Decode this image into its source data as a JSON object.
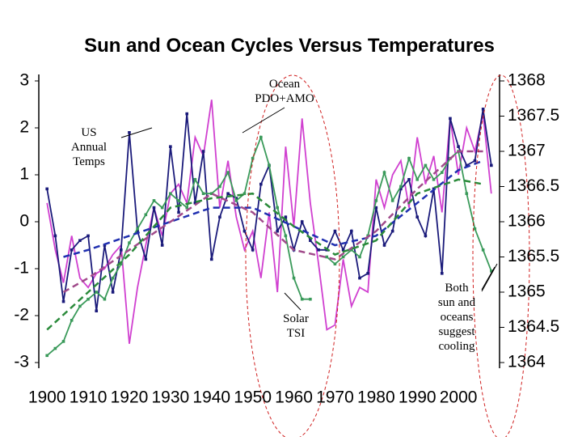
{
  "chart_data": {
    "type": "line",
    "title": "Sun and Ocean Cycles Versus Temperatures",
    "xlim": [
      1898,
      2010
    ],
    "xticks": [
      1900,
      1910,
      1920,
      1930,
      1940,
      1950,
      1960,
      1970,
      1980,
      1990,
      2000
    ],
    "ylim": [
      -3,
      3
    ],
    "yticks": [
      3,
      2,
      1,
      0,
      -1,
      -2,
      -3
    ],
    "y2lim": [
      1364,
      1368
    ],
    "y2ticks": [
      1368,
      1367.5,
      1367,
      1366.5,
      1366,
      1365.5,
      1365,
      1364.5,
      1364
    ],
    "grid": false,
    "series": [
      {
        "color": "#d040d0",
        "dash": false,
        "markers": false,
        "x": [
          1900,
          1902,
          1904,
          1906,
          1908,
          1910,
          1912,
          1914,
          1916,
          1918,
          1920,
          1922,
          1924,
          1926,
          1928,
          1930,
          1932,
          1934,
          1936,
          1938,
          1940,
          1942,
          1944,
          1946,
          1948,
          1950,
          1952,
          1954,
          1956,
          1958,
          1960,
          1962,
          1964,
          1966,
          1968,
          1970,
          1972,
          1974,
          1976,
          1978,
          1980,
          1982,
          1984,
          1986,
          1988,
          1990,
          1992,
          1994,
          1996,
          1998,
          2000,
          2002,
          2004,
          2006,
          2008
        ],
        "values": [
          0.4,
          -0.6,
          -1.3,
          -0.3,
          -1.2,
          -1.4,
          -1.1,
          -1.0,
          -0.7,
          -0.5,
          -2.6,
          -1.4,
          -0.5,
          0.3,
          -0.3,
          0.6,
          0.8,
          0.4,
          1.8,
          1.4,
          2.6,
          0.3,
          1.3,
          0.1,
          -0.6,
          -0.2,
          -1.2,
          0.2,
          -1.5,
          1.6,
          -0.1,
          2.2,
          0.4,
          -0.9,
          -2.3,
          -2.2,
          -0.8,
          -1.8,
          -1.4,
          -1.5,
          0.9,
          0.3,
          1.0,
          1.3,
          0.3,
          1.8,
          0.8,
          1.4,
          0.2,
          2.2,
          1.0,
          2.0,
          1.5,
          2.3,
          0.6
        ]
      },
      {
        "color": "#1a1a7a",
        "dash": false,
        "markers": true,
        "x": [
          1900,
          1902,
          1904,
          1906,
          1908,
          1910,
          1912,
          1914,
          1916,
          1918,
          1920,
          1922,
          1924,
          1926,
          1928,
          1930,
          1932,
          1934,
          1936,
          1938,
          1940,
          1942,
          1944,
          1946,
          1948,
          1950,
          1952,
          1954,
          1956,
          1958,
          1960,
          1962,
          1964,
          1966,
          1968,
          1970,
          1972,
          1974,
          1976,
          1978,
          1980,
          1982,
          1984,
          1986,
          1988,
          1990,
          1992,
          1994,
          1996,
          1998,
          2000,
          2002,
          2004,
          2006,
          2008
        ],
        "values": [
          0.7,
          -0.3,
          -1.7,
          -0.6,
          -0.4,
          -0.3,
          -1.9,
          -0.5,
          -1.5,
          -0.6,
          1.9,
          -0.2,
          -0.8,
          0.3,
          -0.5,
          1.6,
          0.2,
          2.3,
          0.4,
          1.5,
          -0.8,
          0.1,
          0.6,
          0.5,
          -0.2,
          -0.6,
          0.8,
          1.2,
          -0.2,
          0.1,
          -0.6,
          0.0,
          -0.4,
          -0.6,
          -0.6,
          -0.2,
          -0.6,
          -0.2,
          -1.2,
          -1.1,
          0.3,
          -0.5,
          -0.2,
          0.7,
          0.9,
          0.1,
          -0.3,
          0.7,
          -1.1,
          2.2,
          1.6,
          1.2,
          1.3,
          2.4,
          1.2
        ]
      },
      {
        "color": "#3a9a5a",
        "dash": false,
        "markers": true,
        "axis": "y2",
        "x": [
          1900,
          1902,
          1904,
          1906,
          1908,
          1910,
          1912,
          1914,
          1916,
          1918,
          1920,
          1922,
          1924,
          1926,
          1928,
          1930,
          1932,
          1934,
          1936,
          1938,
          1940,
          1942,
          1944,
          1946,
          1948,
          1950,
          1952,
          1954,
          1956,
          1958,
          1960,
          1962,
          1964,
          1966,
          1968,
          1970,
          1972,
          1974,
          1976,
          1978,
          1980,
          1982,
          1984,
          1986,
          1988,
          1990,
          1992,
          1994,
          1996,
          1998,
          2000,
          2002,
          2004,
          2006,
          2008
        ],
        "values": [
          1364.1,
          1364.2,
          1364.3,
          1364.6,
          1364.8,
          1364.9,
          1365.0,
          1364.9,
          1365.2,
          1365.4,
          1365.7,
          1365.9,
          1366.1,
          1366.3,
          1366.2,
          1366.4,
          1366.3,
          1366.2,
          1366.6,
          1366.4,
          1366.4,
          1366.5,
          1366.7,
          1366.3,
          1366.4,
          1366.9,
          1367.2,
          1366.8,
          1366.2,
          1365.8,
          1365.2,
          1364.9,
          1364.9,
          null,
          1365.5,
          1365.4,
          1365.5,
          1365.6,
          1365.5,
          1365.8,
          1366.3,
          1366.7,
          1366.3,
          1366.5,
          1366.9,
          1366.6,
          1366.8,
          1366.6,
          1366.7,
          1366.9,
          1367.0,
          1366.4,
          1365.9,
          1365.6,
          1365.3
        ]
      },
      {
        "color": "#2030b0",
        "dash": true,
        "markers": false,
        "x": [
          1904,
          1910,
          1920,
          1930,
          1940,
          1950,
          1960,
          1970,
          1980,
          1990,
          2000,
          2006
        ],
        "values": [
          -0.75,
          -0.6,
          -0.3,
          0.0,
          0.3,
          0.3,
          -0.1,
          -0.5,
          -0.3,
          0.4,
          1.1,
          1.3
        ]
      },
      {
        "color": "#a04a8a",
        "dash": true,
        "markers": false,
        "x": [
          1904,
          1910,
          1920,
          1930,
          1940,
          1950,
          1960,
          1970,
          1980,
          1990,
          2000,
          2006
        ],
        "values": [
          -1.5,
          -1.2,
          -0.6,
          0.0,
          0.6,
          0.2,
          -0.6,
          -0.8,
          -0.2,
          0.7,
          1.5,
          1.5
        ]
      },
      {
        "color": "#2a8a3a",
        "dash": true,
        "markers": false,
        "x": [
          1900,
          1910,
          1920,
          1930,
          1940,
          1950,
          1960,
          1970,
          1980,
          1990,
          2000,
          2006
        ],
        "values": [
          -2.3,
          -1.5,
          -0.7,
          0.3,
          0.5,
          0.6,
          -0.1,
          -0.7,
          -0.4,
          0.6,
          0.9,
          0.8
        ]
      }
    ],
    "annotations": [
      {
        "lines": [
          "Ocean",
          "PDO+AMO"
        ]
      },
      {
        "lines": [
          "US",
          "Annual",
          "Temps"
        ]
      },
      {
        "lines": [
          "Solar",
          "TSI"
        ]
      },
      {
        "lines": [
          "Both",
          "sun and",
          "oceans",
          "suggest",
          "cooling"
        ]
      }
    ]
  }
}
